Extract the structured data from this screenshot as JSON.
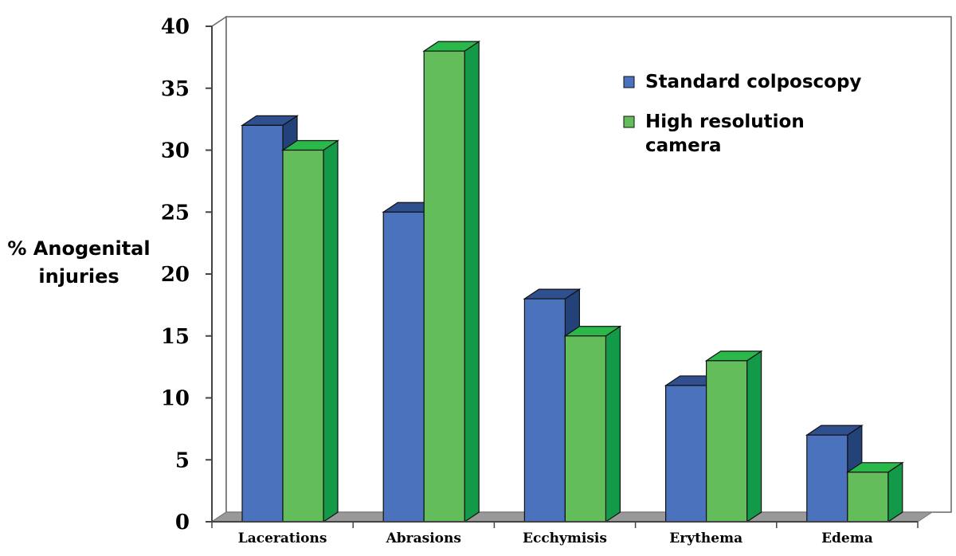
{
  "chart_data": {
    "type": "bar",
    "categories": [
      "Lacerations",
      "Abrasions",
      "Ecchymisis",
      "Erythema",
      "Edema"
    ],
    "series": [
      {
        "name": "Standard colposcopy",
        "values": [
          32,
          25,
          18,
          11,
          7
        ],
        "color": "#4a72bd",
        "top_color": "#2f4f8f",
        "side_color": "#24427a"
      },
      {
        "name": "High resolution camera",
        "values": [
          30,
          38,
          15,
          13,
          4
        ],
        "color": "#63bd5a",
        "top_color": "#2ab84a",
        "side_color": "#139a48"
      }
    ],
    "yticks": [
      0,
      5,
      10,
      15,
      20,
      25,
      30,
      35,
      40
    ],
    "ylim": [
      0,
      40
    ],
    "ylabel_lines": [
      "% Anogenital",
      "injuries"
    ],
    "legend": {
      "position": "top-right",
      "entries": [
        {
          "lines": [
            "Standard colposcopy"
          ]
        },
        {
          "lines": [
            "High resolution",
            "camera"
          ]
        }
      ]
    },
    "grid": false,
    "floor_color": "#999999",
    "wall_stroke": "#666666"
  }
}
